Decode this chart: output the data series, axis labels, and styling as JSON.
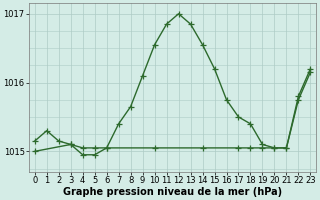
{
  "series1_x": [
    0,
    1,
    2,
    3,
    4,
    5,
    6,
    7,
    8,
    9,
    10,
    11,
    12,
    13,
    14,
    15,
    16,
    17,
    18,
    19,
    20,
    21,
    22,
    23
  ],
  "series1_y": [
    1015.15,
    1015.3,
    1015.15,
    1015.1,
    1014.95,
    1014.95,
    1015.05,
    1015.4,
    1015.65,
    1016.1,
    1016.55,
    1016.85,
    1017.0,
    1016.85,
    1016.55,
    1016.2,
    1015.75,
    1015.5,
    1015.4,
    1015.1,
    1015.05,
    1015.05,
    1015.75,
    1016.15
  ],
  "series2_x": [
    0,
    3,
    4,
    5,
    6,
    10,
    14,
    17,
    18,
    19,
    20,
    21,
    22,
    23
  ],
  "series2_y": [
    1015.0,
    1015.1,
    1015.05,
    1015.05,
    1015.05,
    1015.05,
    1015.05,
    1015.05,
    1015.05,
    1015.05,
    1015.05,
    1015.05,
    1015.8,
    1016.2
  ],
  "line_color": "#2d6a2d",
  "marker_style": "+",
  "marker_size": 4,
  "bg_color": "#d4ece6",
  "grid_color": "#aeccc6",
  "ylim": [
    1014.7,
    1017.15
  ],
  "xlim": [
    -0.5,
    23.5
  ],
  "yticks": [
    1015,
    1016,
    1017
  ],
  "xticks": [
    0,
    1,
    2,
    3,
    4,
    5,
    6,
    7,
    8,
    9,
    10,
    11,
    12,
    13,
    14,
    15,
    16,
    17,
    18,
    19,
    20,
    21,
    22,
    23
  ],
  "xlabel": "Graphe pression niveau de la mer (hPa)",
  "xlabel_fontsize": 7,
  "tick_fontsize": 6,
  "line_width": 1.0,
  "figwidth": 3.2,
  "figheight": 2.0,
  "dpi": 100
}
